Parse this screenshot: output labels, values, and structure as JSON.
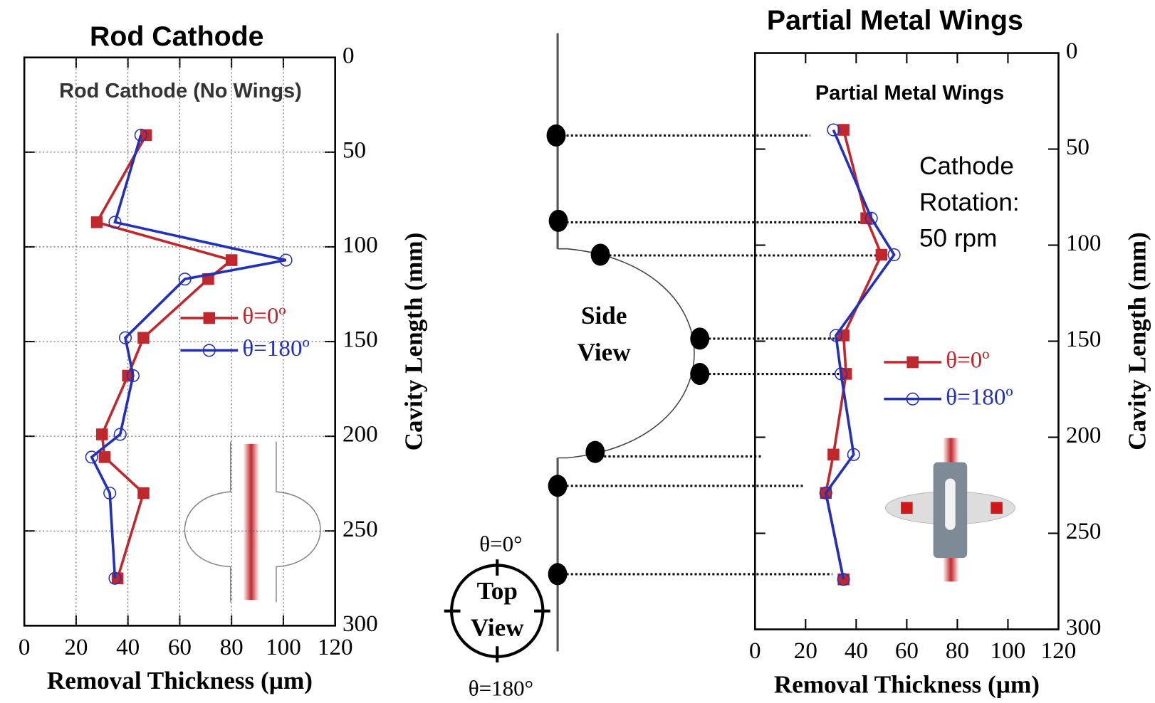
{
  "chart_data": [
    {
      "type": "line",
      "title": "Rod Cathode",
      "annotation": "Rod Cathode (No Wings)",
      "xlabel": "Removal Thickness (µm)",
      "ylabel": "Cavity Length (mm)",
      "xlim": [
        0,
        120
      ],
      "xticks": [
        0,
        20,
        40,
        60,
        80,
        100,
        120
      ],
      "ylim": [
        0,
        300
      ],
      "yticks": [
        0,
        50,
        100,
        150,
        200,
        250,
        300
      ],
      "y_reversed": true,
      "grid": true,
      "positions": [
        41,
        87,
        107,
        117,
        148,
        168,
        199,
        211,
        230,
        275
      ],
      "series": [
        {
          "name": "θ=0º",
          "color": "#c0282d",
          "marker": "square",
          "values": [
            47,
            28,
            80,
            71,
            46,
            40,
            30,
            31,
            46,
            36
          ]
        },
        {
          "name": "θ=180º",
          "color": "#2331b8",
          "marker": "circle",
          "values": [
            45,
            35,
            101,
            62,
            39,
            42,
            37,
            26,
            33,
            35
          ]
        }
      ]
    },
    {
      "type": "line",
      "title": "Partial Metal Wings",
      "annotation": "Partial Metal Wings",
      "note": [
        "Cathode",
        "Rotation:",
        "50 rpm"
      ],
      "xlabel": "Removal Thickness (µm)",
      "ylabel": "Cavity Length (mm)",
      "xlim": [
        0,
        120
      ],
      "xticks": [
        0,
        20,
        40,
        60,
        80,
        100,
        120
      ],
      "ylim": [
        0,
        300
      ],
      "yticks": [
        0,
        50,
        100,
        150,
        200,
        250,
        300
      ],
      "y_reversed": true,
      "grid": false,
      "positions": [
        40,
        86,
        105,
        147,
        167,
        209,
        229,
        274
      ],
      "series": [
        {
          "name": "θ=0º",
          "color": "#c0282d",
          "marker": "square",
          "values": [
            35,
            44,
            50,
            35,
            36,
            31,
            28,
            35
          ]
        },
        {
          "name": "θ=180º",
          "color": "#2331b8",
          "marker": "circle",
          "values": [
            31,
            46,
            55,
            32,
            34,
            39,
            28,
            35
          ]
        }
      ]
    }
  ],
  "diagram": {
    "side_view": [
      "Side",
      "View"
    ],
    "top_view": [
      "Top",
      "View"
    ],
    "theta_top": "θ=0°",
    "theta_bottom": "θ=180°"
  }
}
